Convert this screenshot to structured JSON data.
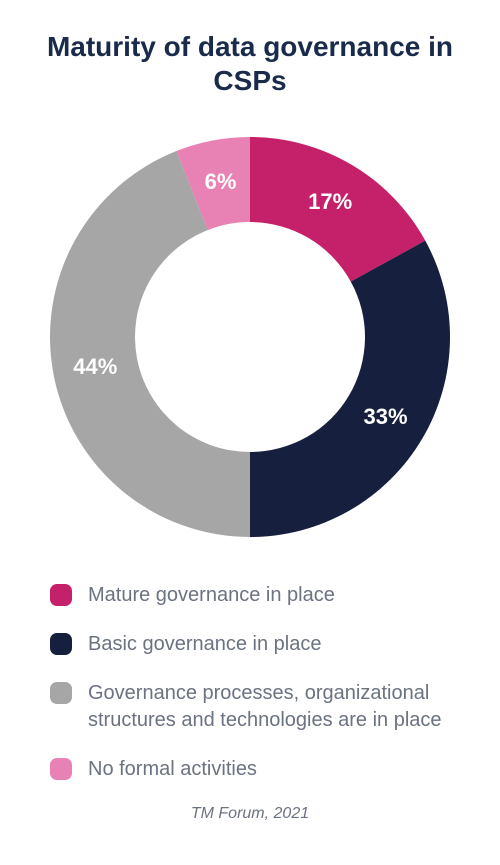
{
  "chart": {
    "type": "donut",
    "title": "Maturity of data governance in CSPs",
    "title_fontsize": 28,
    "title_color": "#1a2a4a",
    "background_color": "#ffffff",
    "outer_radius": 200,
    "inner_radius": 115,
    "start_angle_deg": 0,
    "slices": [
      {
        "label": "Mature governance in place",
        "value": 17,
        "color": "#c5216b",
        "pct_text": "17%"
      },
      {
        "label": "Basic governance in place",
        "value": 33,
        "color": "#161f3d",
        "pct_text": "33%"
      },
      {
        "label": "Governance processes, organizational structures and technologies are in place",
        "value": 44,
        "color": "#a6a6a6",
        "pct_text": "44%"
      },
      {
        "label": "No formal activities",
        "value": 6,
        "color": "#e882b4",
        "pct_text": "6%"
      }
    ],
    "pct_label_fontsize": 22,
    "pct_label_color": "#ffffff",
    "legend_fontsize": 20,
    "legend_text_color": "#6b7280",
    "legend_swatch_radius": 7,
    "source": "TM Forum, 2021",
    "source_fontsize": 16,
    "source_color": "#6b7280"
  }
}
